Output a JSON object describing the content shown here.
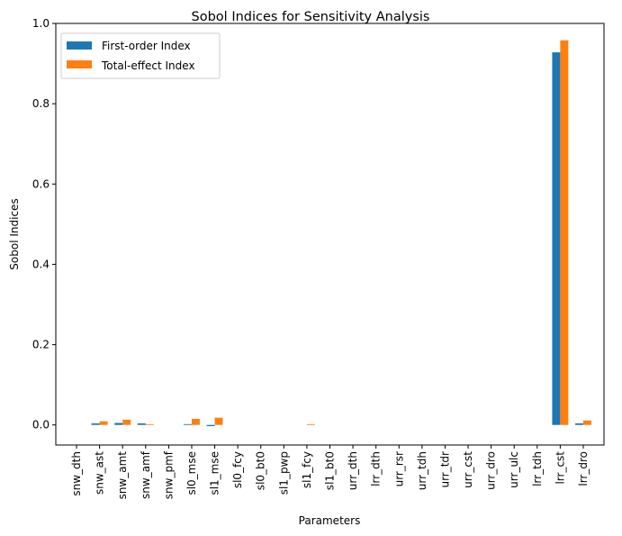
{
  "chart_data": {
    "type": "bar",
    "title": "Sobol Indices for Sensitivity Analysis",
    "xlabel": "Parameters",
    "ylabel": "Sobol Indices",
    "ylim": [
      -0.05,
      1.0
    ],
    "yticks": [
      0.0,
      0.2,
      0.4,
      0.6,
      0.8,
      1.0
    ],
    "ytick_labels": [
      "0.0",
      "0.2",
      "0.4",
      "0.6",
      "0.8",
      "1.0"
    ],
    "grid": false,
    "legend_position": "top-left",
    "categories": [
      "snw_dth",
      "snw_ast",
      "snw_amt",
      "snw_amf",
      "snw_pmf",
      "sl0_mse",
      "sl1_mse",
      "sl0_fcy",
      "sl0_bt0",
      "sl1_pwp",
      "sl1_fcy",
      "sl1_bt0",
      "urr_dth",
      "lrr_dth",
      "urr_rsr",
      "urr_tdh",
      "urr_tdr",
      "urr_cst",
      "urr_dro",
      "urr_ulc",
      "lrr_tdh",
      "lrr_cst",
      "lrr_dro"
    ],
    "series": [
      {
        "name": "First-order Index",
        "color": "#1f77b4",
        "values": [
          0.0,
          0.004,
          0.005,
          0.004,
          0.0,
          0.002,
          -0.003,
          0.0,
          0.0,
          0.0,
          0.0,
          0.0,
          0.0,
          0.0,
          0.0,
          0.0,
          0.0,
          0.0,
          0.0,
          0.0,
          0.0,
          0.928,
          0.004
        ]
      },
      {
        "name": "Total-effect Index",
        "color": "#ff7f0e",
        "values": [
          0.0,
          0.009,
          0.013,
          0.002,
          0.0,
          0.015,
          0.018,
          0.0,
          0.0,
          0.0,
          0.002,
          0.0,
          0.0,
          0.0,
          0.0,
          0.0,
          0.0,
          0.0,
          0.0,
          0.0,
          0.0,
          0.958,
          0.011
        ]
      }
    ]
  }
}
